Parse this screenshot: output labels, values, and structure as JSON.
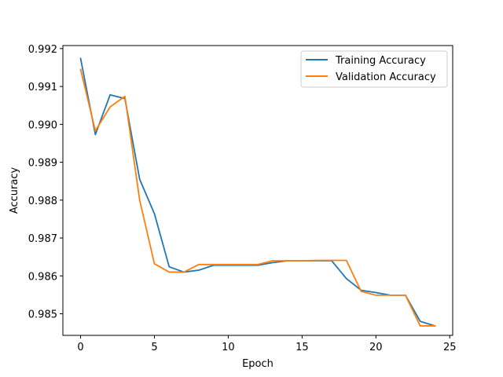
{
  "chart_data": {
    "type": "line",
    "xlabel": "Epoch",
    "ylabel": "Accuracy",
    "xlim": [
      -1.2,
      25.2
    ],
    "ylim": [
      0.98443,
      0.99208
    ],
    "xticks": [
      0,
      5,
      10,
      15,
      20,
      25
    ],
    "yticks": [
      0.985,
      0.986,
      0.987,
      0.988,
      0.989,
      0.99,
      0.991,
      0.992
    ],
    "legend_position": "top-right",
    "grid": false,
    "x": [
      0,
      1,
      2,
      3,
      4,
      5,
      6,
      7,
      8,
      9,
      10,
      11,
      12,
      13,
      14,
      15,
      16,
      17,
      18,
      19,
      20,
      21,
      22,
      23,
      24
    ],
    "series": [
      {
        "name": "Training Accuracy",
        "color": "#1f77b4",
        "values": [
          0.99174,
          0.98973,
          0.99078,
          0.99068,
          0.98855,
          0.98764,
          0.98624,
          0.9861,
          0.98615,
          0.98628,
          0.98628,
          0.98628,
          0.98628,
          0.98635,
          0.9864,
          0.9864,
          0.9864,
          0.9864,
          0.98593,
          0.98562,
          0.98556,
          0.98549,
          0.98549,
          0.9848,
          0.98468
        ]
      },
      {
        "name": "Validation Accuracy",
        "color": "#ff7f0e",
        "values": [
          0.99145,
          0.98983,
          0.99046,
          0.99074,
          0.988,
          0.98632,
          0.9861,
          0.9861,
          0.9863,
          0.9863,
          0.9863,
          0.9863,
          0.9863,
          0.9864,
          0.9864,
          0.9864,
          0.98641,
          0.98641,
          0.98641,
          0.98559,
          0.98549,
          0.98549,
          0.98549,
          0.98468,
          0.98468
        ]
      }
    ]
  }
}
